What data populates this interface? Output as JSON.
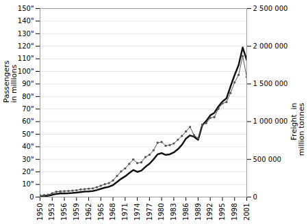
{
  "chart_data": {
    "type": "line",
    "x": [
      1950,
      1951,
      1952,
      1953,
      1954,
      1955,
      1956,
      1957,
      1958,
      1959,
      1960,
      1961,
      1962,
      1963,
      1964,
      1965,
      1966,
      1967,
      1968,
      1969,
      1970,
      1971,
      1972,
      1973,
      1974,
      1975,
      1976,
      1977,
      1978,
      1979,
      1980,
      1981,
      1982,
      1983,
      1984,
      1985,
      1986,
      1987,
      1988,
      1989,
      1990,
      1991,
      1992,
      1993,
      1994,
      1995,
      1996,
      1997,
      1998,
      1999,
      2000,
      2001
    ],
    "xlim": [
      1950,
      2001
    ],
    "xticks": [
      1950,
      1953,
      1956,
      1959,
      1962,
      1965,
      1968,
      1971,
      1974,
      1977,
      1980,
      1983,
      1986,
      1989,
      1992,
      1995,
      1998,
      2001
    ],
    "ylim": [
      0,
      150
    ],
    "yticks": [
      0,
      {
        "value": 10,
        "label": "10\""
      },
      {
        "value": 20,
        "label": "20\""
      },
      {
        "value": 30,
        "label": "30\""
      },
      {
        "value": 40,
        "label": "40\""
      },
      {
        "value": 50,
        "label": "50\""
      },
      {
        "value": 60,
        "label": "60\""
      },
      {
        "value": 70,
        "label": "70\""
      },
      {
        "value": 80,
        "label": "80\""
      },
      {
        "value": 90,
        "label": "90\""
      },
      {
        "value": 100,
        "label": "100\""
      },
      {
        "value": 110,
        "label": "110\""
      },
      {
        "value": 120,
        "label": "120\""
      },
      {
        "value": 130,
        "label": "130\""
      },
      {
        "value": 140,
        "label": "140\""
      },
      {
        "value": 150,
        "label": "150\""
      }
    ],
    "y2lim": [
      0,
      2500000
    ],
    "y2ticks": [
      0,
      {
        "value": 500000,
        "label": "500 000"
      },
      {
        "value": 1000000,
        "label": "1 000 000"
      },
      {
        "value": 1500000,
        "label": "1 500 000"
      },
      {
        "value": 2000000,
        "label": "2 000 000"
      },
      {
        "value": 2500000,
        "label": "2 500 000"
      }
    ],
    "ylabel": "Passengers\nin millions",
    "y2label": "Freight  in\nmillion tonnes",
    "grid": true,
    "series": [
      {
        "color": "#111111",
        "values": [
          0.5,
          0.7,
          1.0,
          1.8,
          2.5,
          2.8,
          2.9,
          3.0,
          3.2,
          3.5,
          4.0,
          4.3,
          4.5,
          4.8,
          5.5,
          6.5,
          7.5,
          8.2,
          9.5,
          12.0,
          14.5,
          16.5,
          19.0,
          21.5,
          20.0,
          21.0,
          24.0,
          26.5,
          30.0,
          34.0,
          35.0,
          33.5,
          34.0,
          35.5,
          38.0,
          41.5,
          46.5,
          49.0,
          48.0,
          45.5,
          57.0,
          60.5,
          65.0,
          67.0,
          72.0,
          76.0,
          78.5,
          88.0,
          97.0,
          105.0,
          119.0,
          109.0
        ]
      },
      {
        "color": "#555555",
        "axis": "y2",
        "marker": "dot",
        "values": [
          20000,
          25000,
          30000,
          50000,
          70000,
          75000,
          78000,
          80000,
          85000,
          90000,
          100000,
          105000,
          110000,
          115000,
          130000,
          150000,
          170000,
          185000,
          220000,
          280000,
          340000,
          380000,
          440000,
          500000,
          450000,
          460000,
          530000,
          560000,
          620000,
          720000,
          730000,
          680000,
          690000,
          710000,
          760000,
          810000,
          870000,
          930000,
          820000,
          780000,
          960000,
          980000,
          1050000,
          1060000,
          1170000,
          1240000,
          1260000,
          1380000,
          1520000,
          1620000,
          1870000,
          1590000
        ]
      }
    ]
  }
}
